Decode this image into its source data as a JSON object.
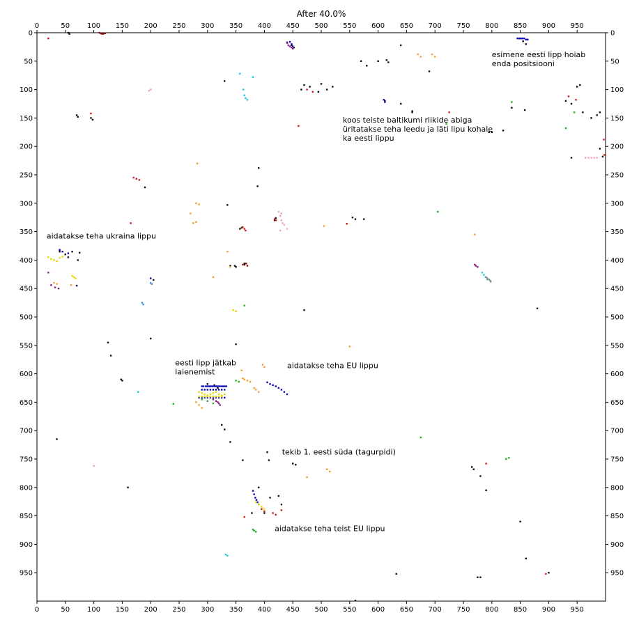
{
  "chart_data": {
    "type": "scatter",
    "title": "After 40.0%",
    "xlabel": "",
    "ylabel": "",
    "xlim": [
      0,
      1000
    ],
    "ylim": [
      0,
      1000
    ],
    "y_inverted": true,
    "grid": false,
    "ticks_on_all_sides": true,
    "xticks": [
      0,
      50,
      100,
      150,
      200,
      250,
      300,
      350,
      400,
      450,
      500,
      550,
      600,
      650,
      700,
      750,
      800,
      850,
      900,
      950
    ],
    "yticks": [
      0,
      50,
      100,
      150,
      200,
      250,
      300,
      350,
      400,
      450,
      500,
      550,
      600,
      650,
      700,
      750,
      800,
      850,
      900,
      950
    ],
    "annotations": [
      {
        "id": "annot-estonian-flag-holds",
        "lines": [
          "esimene eesti lipp hoiab",
          "enda positsiooni"
        ],
        "x": 800,
        "y": 43
      },
      {
        "id": "annot-baltic-help",
        "lines": [
          "koos teiste baltikumi riikide abiga",
          "üritatakse teha leedu ja läti lipu kohale",
          "ka eesti lippu"
        ],
        "x": 538,
        "y": 158
      },
      {
        "id": "annot-ukraine-flag",
        "lines": [
          "aidatakse teha ukraina lippu"
        ],
        "x": 17,
        "y": 362
      },
      {
        "id": "annot-estonian-flag-expands",
        "lines": [
          "eesti lipp jätkab",
          "laienemist"
        ],
        "x": 243,
        "y": 585
      },
      {
        "id": "annot-eu-flag",
        "lines": [
          "aidatakse teha EU lippu"
        ],
        "x": 440,
        "y": 590
      },
      {
        "id": "annot-heart",
        "lines": [
          "tekib 1. eesti süda (tagurpidi)"
        ],
        "x": 431,
        "y": 742
      },
      {
        "id": "annot-second-eu-flag",
        "lines": [
          "aidatakse teha teist EU lippu"
        ],
        "x": 418,
        "y": 877
      }
    ],
    "colors": {
      "black": "#111111",
      "blue": "#0a0ab4",
      "yellow": "#e6d800",
      "red": "#c81e1e",
      "pink": "#f0a0c8",
      "orange": "#f0a030",
      "green": "#20b020",
      "cyan": "#20c8d8",
      "purple": "#8c1a8c",
      "gray": "#8c8c8c",
      "lightblue": "#3c8cdc",
      "darkred": "#8c1414"
    },
    "series": [
      {
        "color": "black",
        "x": [
          55,
          57,
          115,
          70,
          72,
          95,
          98,
          190,
          335,
          330,
          390,
          388,
          365,
          340,
          350,
          510,
          520,
          500,
          495,
          600,
          615,
          618,
          660,
          640,
          795,
          800,
          820,
          835,
          858,
          950,
          955,
          940,
          990,
          995,
          440,
          448,
          452,
          465,
          480,
          470,
          555,
          560,
          575,
          420,
          418,
          360,
          357,
          348,
          365,
          40,
          40,
          50,
          55,
          62,
          75,
          72,
          70,
          35,
          125,
          130,
          148,
          150,
          160,
          200,
          205,
          300,
          312,
          318,
          325,
          330,
          340,
          350,
          362,
          378,
          390,
          400,
          410,
          425,
          430,
          405,
          408,
          450,
          455,
          470,
          775,
          780,
          560,
          570,
          580,
          632,
          612,
          640,
          660,
          690,
          765,
          768,
          780,
          790,
          850,
          855,
          860,
          880,
          900,
          930,
          940,
          960,
          975,
          985,
          990,
          860,
          850
        ],
        "y": [
          0,
          2,
          1,
          145,
          148,
          150,
          153,
          272,
          303,
          85,
          238,
          270,
          406,
          410,
          412,
          100,
          95,
          90,
          104,
          50,
          48,
          52,
          138,
          22,
          175,
          175,
          172,
          132,
          136,
          95,
          92,
          220,
          204,
          218,
          17,
          22,
          26,
          100,
          95,
          92,
          325,
          328,
          328,
          326,
          330,
          343,
          345,
          410,
          408,
          382,
          385,
          390,
          395,
          385,
          387,
          400,
          445,
          715,
          545,
          568,
          610,
          612,
          800,
          538,
          435,
          618,
          620,
          625,
          690,
          698,
          720,
          548,
          752,
          845,
          800,
          845,
          818,
          815,
          830,
          738,
          752,
          758,
          760,
          488,
          958,
          958,
          999,
          50,
          58,
          952,
          120,
          125,
          140,
          68,
          764,
          768,
          780,
          805,
          10,
          15,
          20,
          485,
          950,
          120,
          125,
          140,
          150,
          145,
          140,
          925,
          860
        ]
      },
      {
        "color": "blue",
        "x": [
          290,
          293,
          297,
          300,
          303,
          306,
          309,
          312,
          315,
          318,
          321,
          324,
          327,
          330,
          333,
          290,
          295,
          300,
          305,
          310,
          315,
          320,
          325,
          330,
          285,
          290,
          295,
          300,
          305,
          310,
          315,
          320,
          325,
          330,
          405,
          410,
          415,
          420,
          425,
          430,
          435,
          440,
          845,
          848,
          851,
          854,
          857,
          860,
          863,
          445,
          448,
          450,
          610,
          612,
          200,
          40,
          45,
          55,
          380,
          382,
          384,
          386,
          388,
          390
        ],
        "y": [
          622,
          622,
          622,
          622,
          622,
          622,
          622,
          622,
          622,
          622,
          622,
          622,
          622,
          622,
          622,
          628,
          628,
          628,
          628,
          628,
          628,
          628,
          628,
          628,
          642,
          642,
          642,
          642,
          642,
          642,
          642,
          642,
          642,
          642,
          615,
          618,
          620,
          622,
          625,
          628,
          632,
          636,
          10,
          10,
          10,
          10,
          10,
          12,
          12,
          16,
          20,
          24,
          118,
          122,
          432,
          382,
          385,
          388,
          806,
          812,
          818,
          822,
          826,
          830
        ]
      },
      {
        "color": "yellow",
        "x": [
          20,
          25,
          30,
          35,
          40,
          45,
          285,
          290,
          295,
          300,
          305,
          310,
          315,
          320,
          325,
          330,
          285,
          290,
          295,
          300,
          305,
          310,
          315,
          320,
          325,
          62,
          65,
          68,
          345,
          350,
          385,
          390,
          395,
          400
        ],
        "y": [
          395,
          398,
          400,
          402,
          396,
          394,
          632,
          634,
          636,
          638,
          636,
          634,
          632,
          636,
          638,
          636,
          640,
          640,
          640,
          640,
          640,
          640,
          640,
          640,
          640,
          428,
          430,
          432,
          488,
          490,
          826,
          830,
          834,
          838
        ]
      },
      {
        "color": "red",
        "x": [
          95,
          170,
          175,
          180,
          165,
          418,
          420,
          362,
          365,
          367,
          362,
          20,
          460,
          475,
          485,
          545,
          725,
          790,
          365,
          395,
          400,
          415,
          420,
          430,
          895,
          935,
          948,
          997,
          998
        ],
        "y": [
          142,
          255,
          257,
          259,
          335,
          328,
          330,
          342,
          345,
          348,
          408,
          10,
          164,
          100,
          104,
          336,
          140,
          758,
          852,
          838,
          842,
          845,
          848,
          840,
          952,
          112,
          118,
          188,
          215
        ]
      },
      {
        "color": "pink",
        "x": [
          200,
          197,
          425,
          430,
          428,
          435,
          440,
          428,
          430,
          432,
          965,
          970,
          975,
          980,
          985,
          100
        ],
        "y": [
          100,
          102,
          315,
          318,
          322,
          338,
          345,
          348,
          330,
          335,
          220,
          220,
          220,
          220,
          220,
          762
        ]
      },
      {
        "color": "orange",
        "x": [
          282,
          280,
          285,
          270,
          275,
          280,
          335,
          340,
          310,
          505,
          550,
          695,
          700,
          670,
          675,
          770,
          360,
          362,
          365,
          370,
          375,
          382,
          385,
          390,
          397,
          400,
          475,
          510,
          515,
          30,
          35,
          60,
          280,
          285,
          290
        ],
        "y": [
          230,
          300,
          302,
          318,
          335,
          333,
          385,
          412,
          430,
          340,
          552,
          38,
          42,
          38,
          42,
          355,
          594,
          608,
          610,
          612,
          614,
          625,
          628,
          632,
          584,
          588,
          782,
          768,
          772,
          440,
          442,
          444,
          650,
          655,
          660
        ]
      },
      {
        "color": "green",
        "x": [
          705,
          675,
          825,
          830,
          835,
          720,
          930,
          945,
          365,
          380,
          382,
          385,
          240,
          290,
          300,
          310,
          350,
          355
        ],
        "y": [
          315,
          712,
          750,
          748,
          122,
          160,
          168,
          140,
          480,
          874,
          876,
          878,
          653,
          645,
          648,
          652,
          612,
          614
        ]
      },
      {
        "color": "cyan",
        "x": [
          363,
          365,
          367,
          370,
          357,
          380,
          783,
          786,
          789,
          792,
          178,
          332,
          335
        ],
        "y": [
          100,
          110,
          115,
          118,
          72,
          78,
          422,
          426,
          430,
          434,
          632,
          918,
          920
        ]
      },
      {
        "color": "purple",
        "x": [
          440,
          442,
          445,
          448,
          450,
          20,
          25,
          32,
          38,
          770,
          772,
          775,
          310,
          315,
          318,
          320,
          322
        ],
        "y": [
          18,
          22,
          24,
          26,
          28,
          422,
          444,
          448,
          450,
          408,
          410,
          412,
          645,
          648,
          650,
          652,
          655
        ]
      },
      {
        "color": "gray",
        "x": [
          790,
          792,
          795,
          797,
          798
        ],
        "y": [
          430,
          432,
          434,
          436,
          438
        ]
      },
      {
        "color": "lightblue",
        "x": [
          185,
          187,
          200,
          202
        ],
        "y": [
          475,
          478,
          440,
          442
        ]
      },
      {
        "color": "darkred",
        "x": [
          110,
          112,
          114,
          117,
          120,
          368,
          370
        ],
        "y": [
          0,
          1,
          2,
          2,
          1,
          406,
          410
        ]
      }
    ]
  }
}
